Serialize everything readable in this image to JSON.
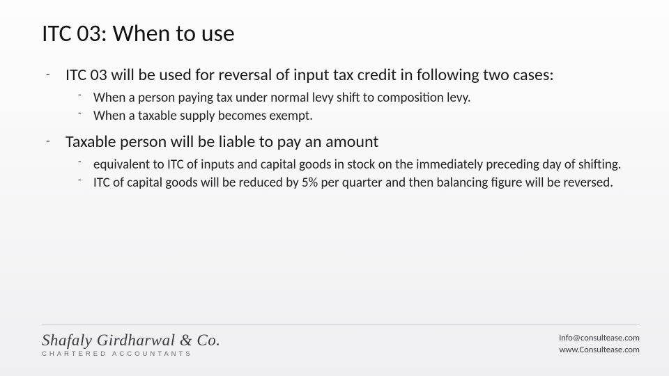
{
  "title": "ITC 03: When to use",
  "bullets": {
    "b1": "ITC 03 will be used for reversal of input tax credit in following two cases:",
    "b1a": "When a person paying tax under normal levy shift to composition levy.",
    "b1b": "When a taxable supply becomes exempt.",
    "b2": "Taxable person will be liable to pay an amount",
    "b2a": "equivalent to ITC of inputs and capital goods in stock on the immediately preceding day of shifting.",
    "b2b": "ITC of capital goods will be reduced by 5% per quarter and then balancing figure will be reversed."
  },
  "footer": {
    "brand_name": "Shafaly Girdharwal & Co.",
    "brand_sub": "CHARTERED ACCOUNTANTS",
    "email": "info@consultease.com",
    "website": "www.Consultease.com"
  },
  "colors": {
    "text": "#1a1a1a",
    "divider": "#c9c9cc",
    "brand": "#3a3a40"
  }
}
